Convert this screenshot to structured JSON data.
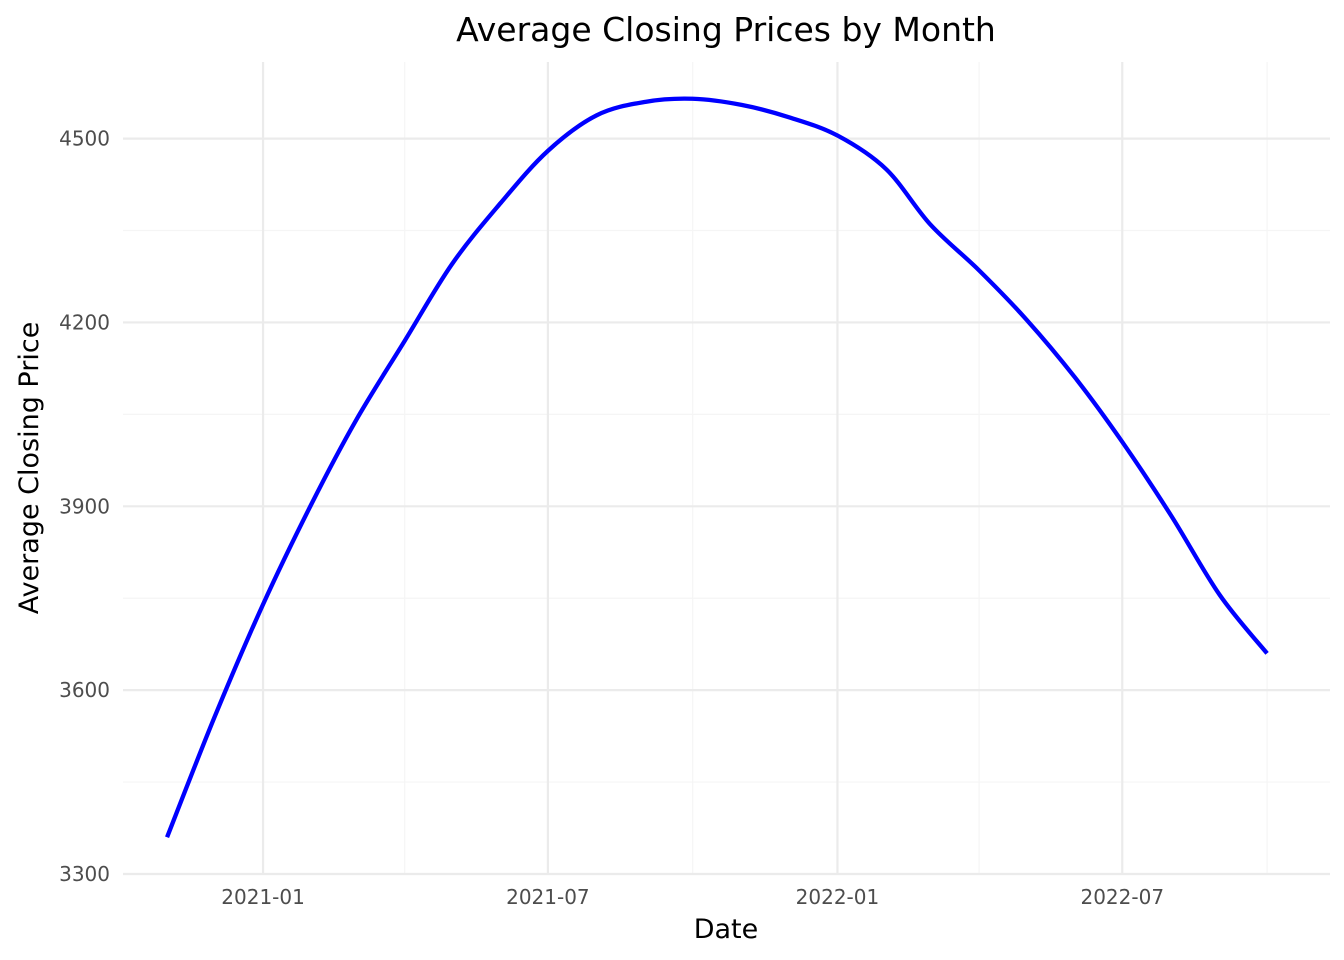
{
  "chart_data": {
    "type": "line",
    "title": "Average Closing Prices by Month",
    "xlabel": "Date",
    "ylabel": "Average Closing Price",
    "x_tick_labels": [
      "2021-01",
      "2021-07",
      "2022-01",
      "2022-07"
    ],
    "y_tick_labels": [
      "3300",
      "3600",
      "3900",
      "4200",
      "4500"
    ],
    "xlim": [
      "2020-10-04",
      "2022-11-10"
    ],
    "ylim": [
      3300,
      4625
    ],
    "grid": true,
    "legend": "none",
    "series": [
      {
        "color": "#0000ff",
        "x": [
          "2020-11-01",
          "2020-12-01",
          "2021-01-01",
          "2021-02-01",
          "2021-03-01",
          "2021-04-01",
          "2021-05-01",
          "2021-06-01",
          "2021-07-01",
          "2021-08-01",
          "2021-09-01",
          "2021-10-01",
          "2021-11-01",
          "2021-12-01",
          "2022-01-01",
          "2022-02-01",
          "2022-03-01",
          "2022-04-01",
          "2022-05-01",
          "2022-06-01",
          "2022-07-01",
          "2022-08-01",
          "2022-09-01",
          "2022-10-01"
        ],
        "y": [
          3360,
          3555,
          3740,
          3905,
          4040,
          4170,
          4295,
          4395,
          4480,
          4538,
          4560,
          4565,
          4555,
          4535,
          4505,
          4450,
          4360,
          4285,
          4205,
          4110,
          4005,
          3885,
          3755,
          3660
        ]
      }
    ]
  },
  "colors": {
    "line": "#0000ff",
    "grid_major": "#ebebeb",
    "grid_minor": "#f5f5f5",
    "tick_text": "#4d4d4d",
    "background": "#ffffff"
  }
}
